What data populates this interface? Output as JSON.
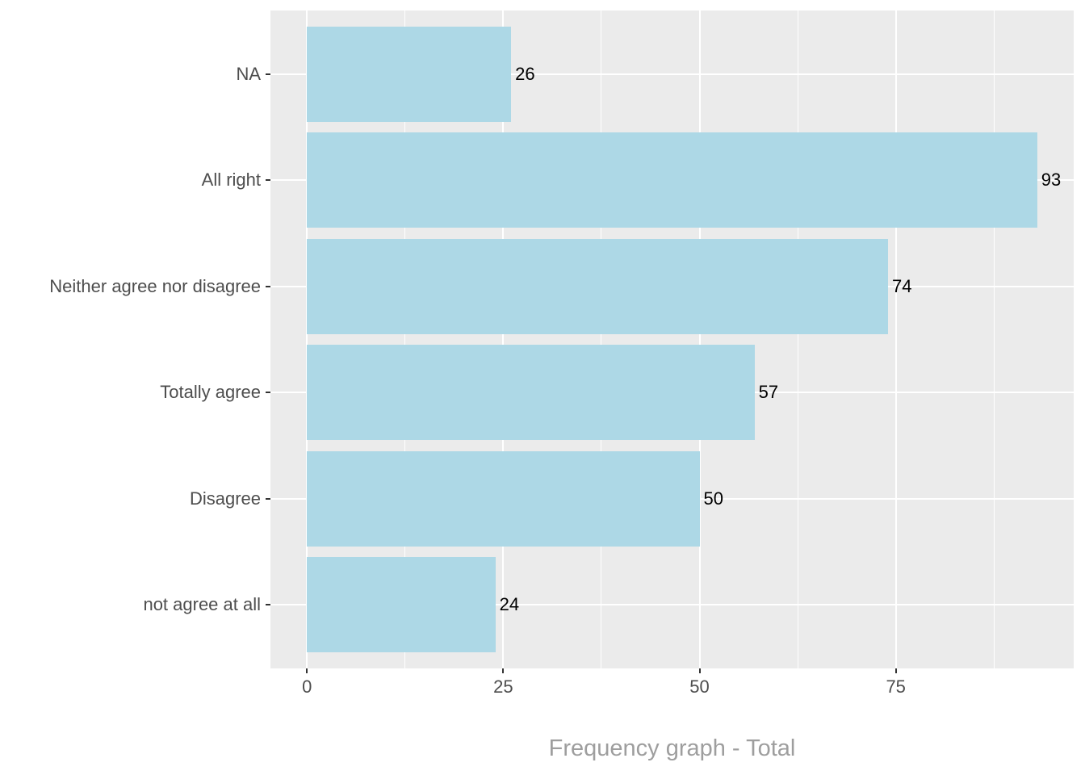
{
  "chart_data": {
    "type": "bar",
    "orientation": "horizontal",
    "title": "Frequency graph - Total",
    "xlabel": "Frequency graph - Total",
    "ylabel": "",
    "categories": [
      "NA",
      "All right",
      "Neither agree nor disagree",
      "Totally agree",
      "Disagree",
      "not agree at all"
    ],
    "values": [
      26,
      93,
      74,
      57,
      50,
      24
    ],
    "value_labels": [
      "26",
      "93",
      "74",
      "57",
      "50",
      "24"
    ],
    "x_major_ticks": [
      0,
      25,
      50,
      75
    ],
    "x_major_tick_labels": [
      "0",
      "25",
      "50",
      "75"
    ],
    "x_minor_ticks": [
      12.5,
      37.5,
      62.5,
      87.5
    ],
    "xlim": [
      -4.65,
      97.65
    ],
    "grid": "major-and-minor-x, major-y",
    "legend": "none",
    "colors": {
      "bar_fill": "#ADD8E6",
      "panel_background": "#EBEBEB",
      "gridline": "#FFFFFF",
      "axis_text": "#4D4D4D",
      "tick_mark": "#333333",
      "bar_value_label": "#000000",
      "axis_title": "#9E9E9E",
      "figure_background": "#FFFFFF"
    }
  }
}
